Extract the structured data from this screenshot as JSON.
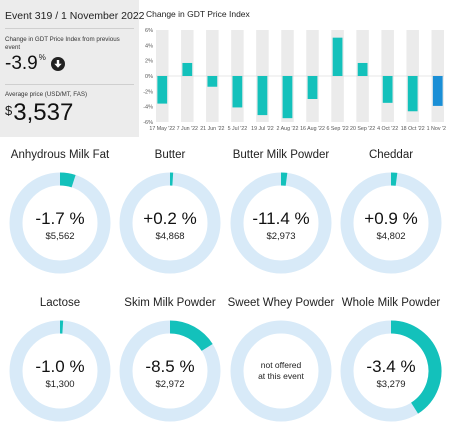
{
  "summary": {
    "event_title": "Event 319 / 1 November 2022",
    "change_label": "Change in GDT Price Index from previous event",
    "change_value": "-3.9",
    "change_unit": "%",
    "change_icon": "arrow-down-icon",
    "avg_label": "Average price (USD/MT, FAS)",
    "avg_currency": "$",
    "avg_value": "3,537"
  },
  "chart_data": {
    "type": "bar",
    "title": "Change in GDT Price Index",
    "categories": [
      "17 May '22",
      "",
      "7 Jun '22",
      "",
      "21 Jun '22",
      "",
      "5 Jul '22",
      "",
      "19 Jul '22",
      "",
      "2 Aug '22",
      "",
      "16 Aug '22",
      "",
      "6 Sep '22",
      "",
      "20 Sep '22",
      "",
      "4 Oct '22",
      "",
      "18 Oct '22",
      "",
      "1 Nov '22"
    ],
    "tick_labels": [
      "17 May '22",
      "7 Jun '22",
      "21 Jun '22",
      "5 Jul '22",
      "19 Jul '22",
      "2 Aug '22",
      "16 Aug '22",
      "6 Sep '22",
      "20 Sep '22",
      "4 Oct '22",
      "18 Oct '22",
      "1 Nov '22"
    ],
    "values": [
      -3.6,
      0,
      1.7,
      0,
      -1.4,
      0,
      -4.1,
      0,
      -5.1,
      0,
      -5.5,
      0,
      -3.0,
      0,
      5.0,
      0,
      1.7,
      0,
      -3.5,
      0,
      -4.6,
      0,
      -3.9
    ],
    "ylim": [
      -6,
      6
    ],
    "yticks": [
      "6%",
      "4%",
      "2%",
      "0%",
      "-2%",
      "-4%",
      "-6%"
    ],
    "highlight_index": 22,
    "colors": {
      "bar": "#13c1bb",
      "highlight": "#1a8fd6",
      "band": "#ebebeb"
    }
  },
  "products": [
    {
      "name": "Anhydrous Milk Fat",
      "change": "-1.7 %",
      "price": "$5,562",
      "fraction": 0.05
    },
    {
      "name": "Butter",
      "change": "+0.2 %",
      "price": "$4,868",
      "fraction": 0.01
    },
    {
      "name": "Butter Milk Powder",
      "change": "-11.4 %",
      "price": "$2,973",
      "fraction": 0.02
    },
    {
      "name": "Cheddar",
      "change": "+0.9 %",
      "price": "$4,802",
      "fraction": 0.02
    },
    {
      "name": "Lactose",
      "change": "-1.0 %",
      "price": "$1,300",
      "fraction": 0.01
    },
    {
      "name": "Skim Milk Powder",
      "change": "-8.5 %",
      "price": "$2,972",
      "fraction": 0.16
    },
    {
      "name": "Sweet Whey Powder",
      "na_line1": "not offered",
      "na_line2": "at this event",
      "fraction": 0
    },
    {
      "name": "Whole Milk Powder",
      "change": "-3.4 %",
      "price": "$3,279",
      "fraction": 0.41
    }
  ],
  "colors": {
    "ring_track": "#d8eaf8",
    "ring_fill": "#13c1bb"
  }
}
